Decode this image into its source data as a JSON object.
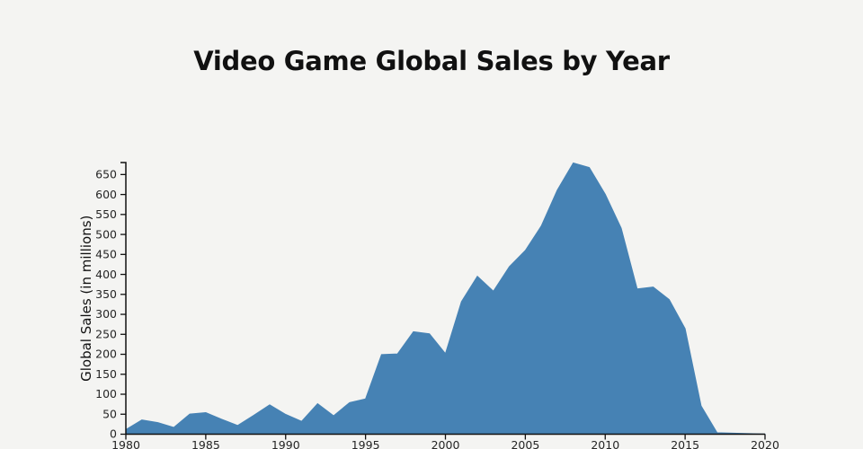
{
  "title": {
    "text": "Video Game Global Sales by Year"
  },
  "chart_data": {
    "type": "area",
    "title": "Video Game Global Sales by Year",
    "xlabel": "",
    "ylabel": "Global Sales (in millions)",
    "x": [
      1980,
      1981,
      1982,
      1983,
      1984,
      1985,
      1986,
      1987,
      1988,
      1989,
      1990,
      1991,
      1992,
      1993,
      1994,
      1995,
      1996,
      1997,
      1998,
      1999,
      2000,
      2001,
      2002,
      2003,
      2004,
      2005,
      2006,
      2007,
      2008,
      2009,
      2010,
      2011,
      2012,
      2013,
      2014,
      2015,
      2016,
      2017,
      2020
    ],
    "values": [
      11.4,
      35.8,
      28.9,
      16.8,
      50.4,
      53.9,
      37.1,
      21.7,
      47.2,
      73.4,
      49.4,
      32.2,
      76.2,
      46.0,
      79.2,
      88.1,
      199.1,
      201.0,
      256.5,
      251.3,
      201.6,
      331.5,
      395.5,
      357.9,
      419.3,
      459.9,
      521.0,
      611.1,
      678.9,
      667.3,
      600.5,
      516.0,
      363.5,
      368.1,
      337.0,
      264.4,
      70.9,
      3.6,
      0.3
    ],
    "xlim": [
      1980,
      2020
    ],
    "ylim": [
      0,
      680
    ],
    "x_ticks": [
      1980,
      1985,
      1990,
      1995,
      2000,
      2005,
      2010,
      2015,
      2020
    ],
    "y_ticks": [
      0,
      50,
      100,
      150,
      200,
      250,
      300,
      350,
      400,
      450,
      500,
      550,
      600,
      650
    ],
    "grid": false,
    "legend": "none",
    "colors": {
      "area": "#4682b4",
      "axis": "#111111",
      "tick_label": "#262626",
      "title": "#111111",
      "background": "#f4f4f2"
    }
  }
}
